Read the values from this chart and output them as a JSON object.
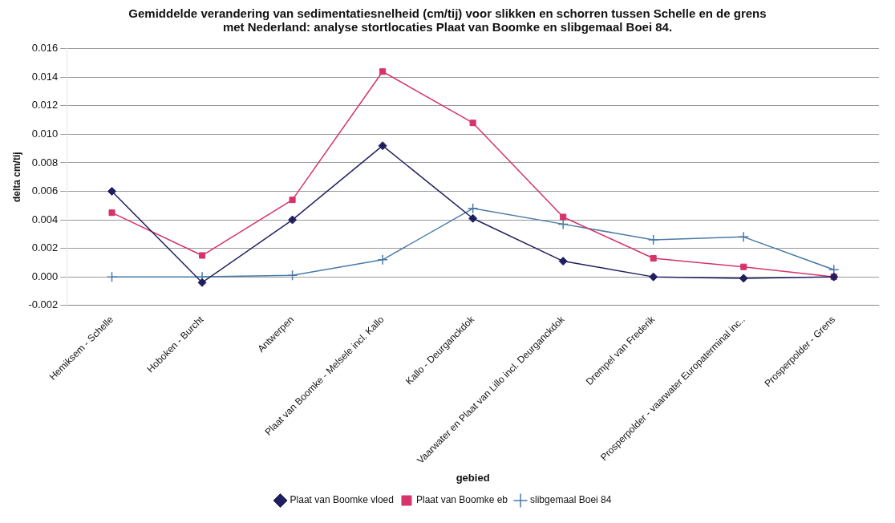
{
  "chart_data": {
    "type": "line",
    "title": "Gemiddelde verandering van sedimentatiesnelheid (cm/tij) voor slikken en schorren tussen Schelle en de grens met Nederland: analyse stortlocaties Plaat van Boomke en slibgemaal Boei 84.",
    "xlabel": "gebied",
    "ylabel": "delta cm/tij",
    "categories": [
      "Hemiksem - Schelle",
      "Hoboken - Burcht",
      "Antwerpen",
      "Plaat van Boomke - Melsele incl. Kallo",
      "Kallo - Deurganckdok",
      "Vaarwater en Plaat van Lillo incl. Deurganckdok",
      "Drempel van Frederik",
      "Prosperpolder - vaarwater Europaterminal inc..",
      "Prosperpolder - Grens"
    ],
    "series": [
      {
        "name": "Plaat van Boomke vloed",
        "color": "#1f1f5f",
        "marker": "diamond",
        "values": [
          0.006,
          -0.0004,
          0.004,
          0.0092,
          0.0041,
          0.0011,
          0.0,
          -0.0001,
          0.0
        ]
      },
      {
        "name": "Plaat van Boomke eb",
        "color": "#d6336b",
        "marker": "square",
        "values": [
          0.0045,
          0.0015,
          0.0054,
          0.0144,
          0.0108,
          0.0042,
          0.0013,
          0.0007,
          0.0
        ]
      },
      {
        "name": "slibgemaal Boei 84",
        "color": "#4a7aa8",
        "marker": "cross",
        "values": [
          0.0,
          0.0,
          0.0001,
          0.0012,
          0.0048,
          0.0037,
          0.0026,
          0.0028,
          0.0005
        ]
      }
    ],
    "ylim": [
      -0.002,
      0.016
    ],
    "yticks": [
      {
        "value": -0.002,
        "label": "-0.002"
      },
      {
        "value": 0,
        "label": "0.000"
      },
      {
        "value": 0.002,
        "label": "0.002"
      },
      {
        "value": 0.004,
        "label": "0.004"
      },
      {
        "value": 0.006,
        "label": "0.006"
      },
      {
        "value": 0.008,
        "label": "0.008"
      },
      {
        "value": 0.01,
        "label": "0.010"
      },
      {
        "value": 0.012,
        "label": "0.012"
      },
      {
        "value": 0.014,
        "label": "0.014"
      },
      {
        "value": 0.016,
        "label": "0.016"
      }
    ],
    "grid": "y",
    "legend": "bottom",
    "line_style": "solid"
  }
}
